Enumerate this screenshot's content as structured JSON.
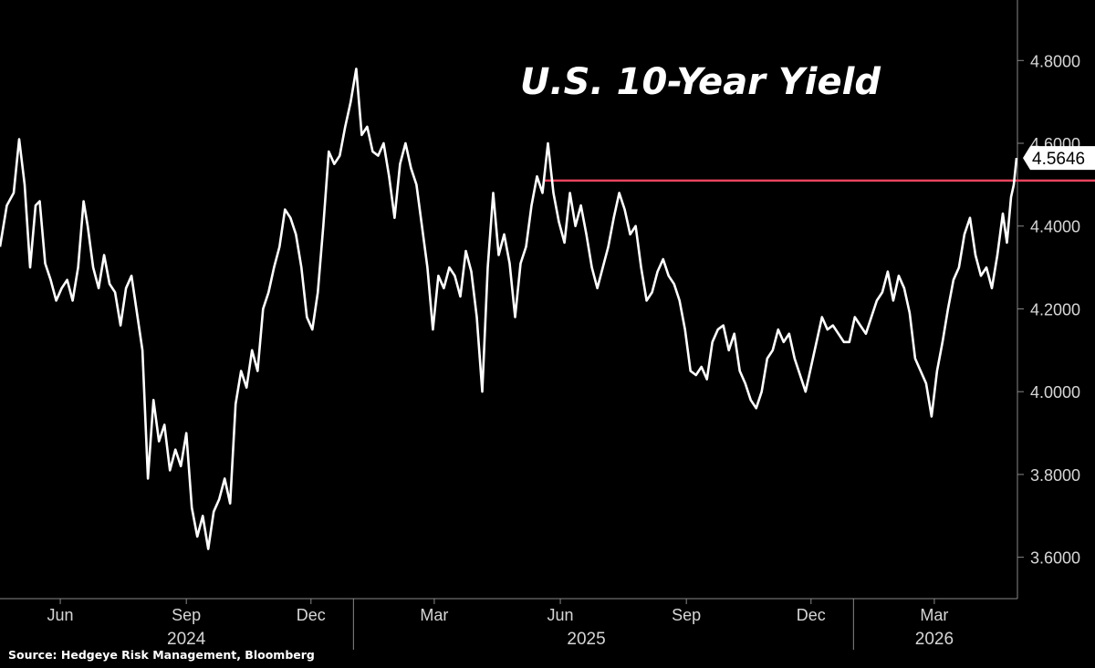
{
  "chart_data": {
    "type": "line",
    "title": "U.S. 10-Year Yield",
    "source": "Source: Hedgeye Risk Management, Bloomberg",
    "ylim": [
      3.5,
      4.88
    ],
    "y_ticks": [
      {
        "value": 3.6,
        "label": "3.6000"
      },
      {
        "value": 3.8,
        "label": "3.8000"
      },
      {
        "value": 4.0,
        "label": "4.0000"
      },
      {
        "value": 4.2,
        "label": "4.2000"
      },
      {
        "value": 4.4,
        "label": "4.4000"
      },
      {
        "value": 4.6,
        "label": "4.6000"
      },
      {
        "value": 4.8,
        "label": "4.8000"
      }
    ],
    "x_range": [
      "2024-04-18",
      "2026-04-30"
    ],
    "month_ticks": [
      {
        "date": "2024-06-01",
        "label": "Jun"
      },
      {
        "date": "2024-09-01",
        "label": "Sep"
      },
      {
        "date": "2024-12-01",
        "label": "Dec"
      },
      {
        "date": "2025-03-01",
        "label": "Mar"
      },
      {
        "date": "2025-06-01",
        "label": "Jun"
      },
      {
        "date": "2025-09-01",
        "label": "Sep"
      },
      {
        "date": "2025-12-01",
        "label": "Dec"
      },
      {
        "date": "2026-03-01",
        "label": "Mar"
      }
    ],
    "year_labels": [
      {
        "date": "2024-09-01",
        "label": "2024"
      },
      {
        "date": "2025-06-20",
        "label": "2025"
      },
      {
        "date": "2026-03-01",
        "label": "2026"
      }
    ],
    "year_separators": [
      "2025-01-01",
      "2026-01-01"
    ],
    "last_value": 4.5646,
    "last_value_label": "4.5646",
    "reference_line": {
      "value": 4.51,
      "from": "2025-05-20",
      "color": "#e8445e"
    },
    "series": [
      {
        "color": "#ffffff",
        "points": [
          [
            "2024-04-18",
            4.35
          ],
          [
            "2024-04-23",
            4.45
          ],
          [
            "2024-04-28",
            4.48
          ],
          [
            "2024-05-02",
            4.61
          ],
          [
            "2024-05-06",
            4.5
          ],
          [
            "2024-05-10",
            4.3
          ],
          [
            "2024-05-14",
            4.45
          ],
          [
            "2024-05-17",
            4.46
          ],
          [
            "2024-05-21",
            4.31
          ],
          [
            "2024-05-25",
            4.27
          ],
          [
            "2024-05-29",
            4.22
          ],
          [
            "2024-06-02",
            4.25
          ],
          [
            "2024-06-06",
            4.27
          ],
          [
            "2024-06-10",
            4.22
          ],
          [
            "2024-06-14",
            4.3
          ],
          [
            "2024-06-18",
            4.46
          ],
          [
            "2024-06-21",
            4.4
          ],
          [
            "2024-06-25",
            4.3
          ],
          [
            "2024-06-29",
            4.25
          ],
          [
            "2024-07-03",
            4.33
          ],
          [
            "2024-07-07",
            4.26
          ],
          [
            "2024-07-11",
            4.24
          ],
          [
            "2024-07-15",
            4.16
          ],
          [
            "2024-07-19",
            4.25
          ],
          [
            "2024-07-23",
            4.28
          ],
          [
            "2024-07-27",
            4.19
          ],
          [
            "2024-07-31",
            4.1
          ],
          [
            "2024-08-04",
            3.79
          ],
          [
            "2024-08-08",
            3.98
          ],
          [
            "2024-08-12",
            3.88
          ],
          [
            "2024-08-16",
            3.92
          ],
          [
            "2024-08-20",
            3.81
          ],
          [
            "2024-08-24",
            3.86
          ],
          [
            "2024-08-28",
            3.82
          ],
          [
            "2024-09-01",
            3.9
          ],
          [
            "2024-09-05",
            3.72
          ],
          [
            "2024-09-09",
            3.65
          ],
          [
            "2024-09-13",
            3.7
          ],
          [
            "2024-09-17",
            3.62
          ],
          [
            "2024-09-21",
            3.71
          ],
          [
            "2024-09-25",
            3.74
          ],
          [
            "2024-09-29",
            3.79
          ],
          [
            "2024-10-03",
            3.73
          ],
          [
            "2024-10-07",
            3.97
          ],
          [
            "2024-10-11",
            4.05
          ],
          [
            "2024-10-15",
            4.01
          ],
          [
            "2024-10-19",
            4.1
          ],
          [
            "2024-10-23",
            4.05
          ],
          [
            "2024-10-27",
            4.2
          ],
          [
            "2024-10-31",
            4.24
          ],
          [
            "2024-11-04",
            4.3
          ],
          [
            "2024-11-08",
            4.35
          ],
          [
            "2024-11-12",
            4.44
          ],
          [
            "2024-11-16",
            4.42
          ],
          [
            "2024-11-20",
            4.38
          ],
          [
            "2024-11-24",
            4.3
          ],
          [
            "2024-11-28",
            4.18
          ],
          [
            "2024-12-02",
            4.15
          ],
          [
            "2024-12-06",
            4.24
          ],
          [
            "2024-12-10",
            4.4
          ],
          [
            "2024-12-14",
            4.58
          ],
          [
            "2024-12-18",
            4.55
          ],
          [
            "2024-12-22",
            4.57
          ],
          [
            "2024-12-26",
            4.64
          ],
          [
            "2024-12-30",
            4.7
          ],
          [
            "2025-01-03",
            4.78
          ],
          [
            "2025-01-07",
            4.62
          ],
          [
            "2025-01-11",
            4.64
          ],
          [
            "2025-01-15",
            4.58
          ],
          [
            "2025-01-19",
            4.57
          ],
          [
            "2025-01-23",
            4.6
          ],
          [
            "2025-01-27",
            4.52
          ],
          [
            "2025-01-31",
            4.42
          ],
          [
            "2025-02-04",
            4.55
          ],
          [
            "2025-02-08",
            4.6
          ],
          [
            "2025-02-12",
            4.54
          ],
          [
            "2025-02-16",
            4.5
          ],
          [
            "2025-02-20",
            4.4
          ],
          [
            "2025-02-24",
            4.3
          ],
          [
            "2025-02-28",
            4.15
          ],
          [
            "2025-03-04",
            4.28
          ],
          [
            "2025-03-08",
            4.25
          ],
          [
            "2025-03-12",
            4.3
          ],
          [
            "2025-03-16",
            4.28
          ],
          [
            "2025-03-20",
            4.23
          ],
          [
            "2025-03-24",
            4.34
          ],
          [
            "2025-03-28",
            4.29
          ],
          [
            "2025-04-01",
            4.18
          ],
          [
            "2025-04-05",
            4.0
          ],
          [
            "2025-04-09",
            4.3
          ],
          [
            "2025-04-13",
            4.48
          ],
          [
            "2025-04-17",
            4.33
          ],
          [
            "2025-04-21",
            4.38
          ],
          [
            "2025-04-25",
            4.31
          ],
          [
            "2025-04-29",
            4.18
          ],
          [
            "2025-05-03",
            4.31
          ],
          [
            "2025-05-07",
            4.35
          ],
          [
            "2025-05-11",
            4.45
          ],
          [
            "2025-05-15",
            4.52
          ],
          [
            "2025-05-19",
            4.48
          ],
          [
            "2025-05-23",
            4.6
          ],
          [
            "2025-05-27",
            4.48
          ],
          [
            "2025-05-31",
            4.41
          ],
          [
            "2025-06-04",
            4.36
          ],
          [
            "2025-06-08",
            4.48
          ],
          [
            "2025-06-12",
            4.4
          ],
          [
            "2025-06-16",
            4.45
          ],
          [
            "2025-06-20",
            4.38
          ],
          [
            "2025-06-24",
            4.3
          ],
          [
            "2025-06-28",
            4.25
          ],
          [
            "2025-07-02",
            4.3
          ],
          [
            "2025-07-06",
            4.35
          ],
          [
            "2025-07-10",
            4.42
          ],
          [
            "2025-07-14",
            4.48
          ],
          [
            "2025-07-18",
            4.44
          ],
          [
            "2025-07-22",
            4.38
          ],
          [
            "2025-07-26",
            4.4
          ],
          [
            "2025-07-30",
            4.3
          ],
          [
            "2025-08-03",
            4.22
          ],
          [
            "2025-08-07",
            4.24
          ],
          [
            "2025-08-11",
            4.29
          ],
          [
            "2025-08-15",
            4.32
          ],
          [
            "2025-08-19",
            4.28
          ],
          [
            "2025-08-23",
            4.26
          ],
          [
            "2025-08-27",
            4.22
          ],
          [
            "2025-08-31",
            4.15
          ],
          [
            "2025-09-04",
            4.05
          ],
          [
            "2025-09-08",
            4.04
          ],
          [
            "2025-09-12",
            4.06
          ],
          [
            "2025-09-16",
            4.03
          ],
          [
            "2025-09-20",
            4.12
          ],
          [
            "2025-09-24",
            4.15
          ],
          [
            "2025-09-28",
            4.16
          ],
          [
            "2025-10-02",
            4.1
          ],
          [
            "2025-10-06",
            4.14
          ],
          [
            "2025-10-10",
            4.05
          ],
          [
            "2025-10-14",
            4.02
          ],
          [
            "2025-10-18",
            3.98
          ],
          [
            "2025-10-22",
            3.96
          ],
          [
            "2025-10-26",
            4.0
          ],
          [
            "2025-10-30",
            4.08
          ],
          [
            "2025-11-03",
            4.1
          ],
          [
            "2025-11-07",
            4.15
          ],
          [
            "2025-11-11",
            4.12
          ],
          [
            "2025-11-15",
            4.14
          ],
          [
            "2025-11-19",
            4.08
          ],
          [
            "2025-11-23",
            4.04
          ],
          [
            "2025-11-27",
            4.0
          ],
          [
            "2025-12-01",
            4.06
          ],
          [
            "2025-12-05",
            4.12
          ],
          [
            "2025-12-09",
            4.18
          ],
          [
            "2025-12-13",
            4.15
          ],
          [
            "2025-12-17",
            4.16
          ],
          [
            "2025-12-21",
            4.14
          ],
          [
            "2025-12-25",
            4.12
          ],
          [
            "2025-12-29",
            4.12
          ],
          [
            "2026-01-02",
            4.18
          ],
          [
            "2026-01-06",
            4.16
          ],
          [
            "2026-01-10",
            4.14
          ],
          [
            "2026-01-14",
            4.18
          ],
          [
            "2026-01-18",
            4.22
          ],
          [
            "2026-01-22",
            4.24
          ],
          [
            "2026-01-26",
            4.29
          ],
          [
            "2026-01-30",
            4.22
          ],
          [
            "2026-02-03",
            4.28
          ],
          [
            "2026-02-07",
            4.25
          ],
          [
            "2026-02-11",
            4.19
          ],
          [
            "2026-02-15",
            4.08
          ],
          [
            "2026-02-19",
            4.05
          ],
          [
            "2026-02-23",
            4.02
          ],
          [
            "2026-02-27",
            3.94
          ],
          [
            "2026-03-03",
            4.05
          ],
          [
            "2026-03-07",
            4.12
          ],
          [
            "2026-03-11",
            4.2
          ],
          [
            "2026-03-15",
            4.27
          ],
          [
            "2026-03-19",
            4.3
          ],
          [
            "2026-03-23",
            4.38
          ],
          [
            "2026-03-27",
            4.42
          ],
          [
            "2026-03-31",
            4.33
          ],
          [
            "2026-04-04",
            4.28
          ],
          [
            "2026-04-08",
            4.3
          ],
          [
            "2026-04-12",
            4.25
          ],
          [
            "2026-04-16",
            4.33
          ],
          [
            "2026-04-20",
            4.43
          ],
          [
            "2026-04-23",
            4.36
          ],
          [
            "2026-04-26",
            4.47
          ],
          [
            "2026-04-28",
            4.5
          ],
          [
            "2026-04-30",
            4.5646
          ]
        ]
      }
    ]
  }
}
